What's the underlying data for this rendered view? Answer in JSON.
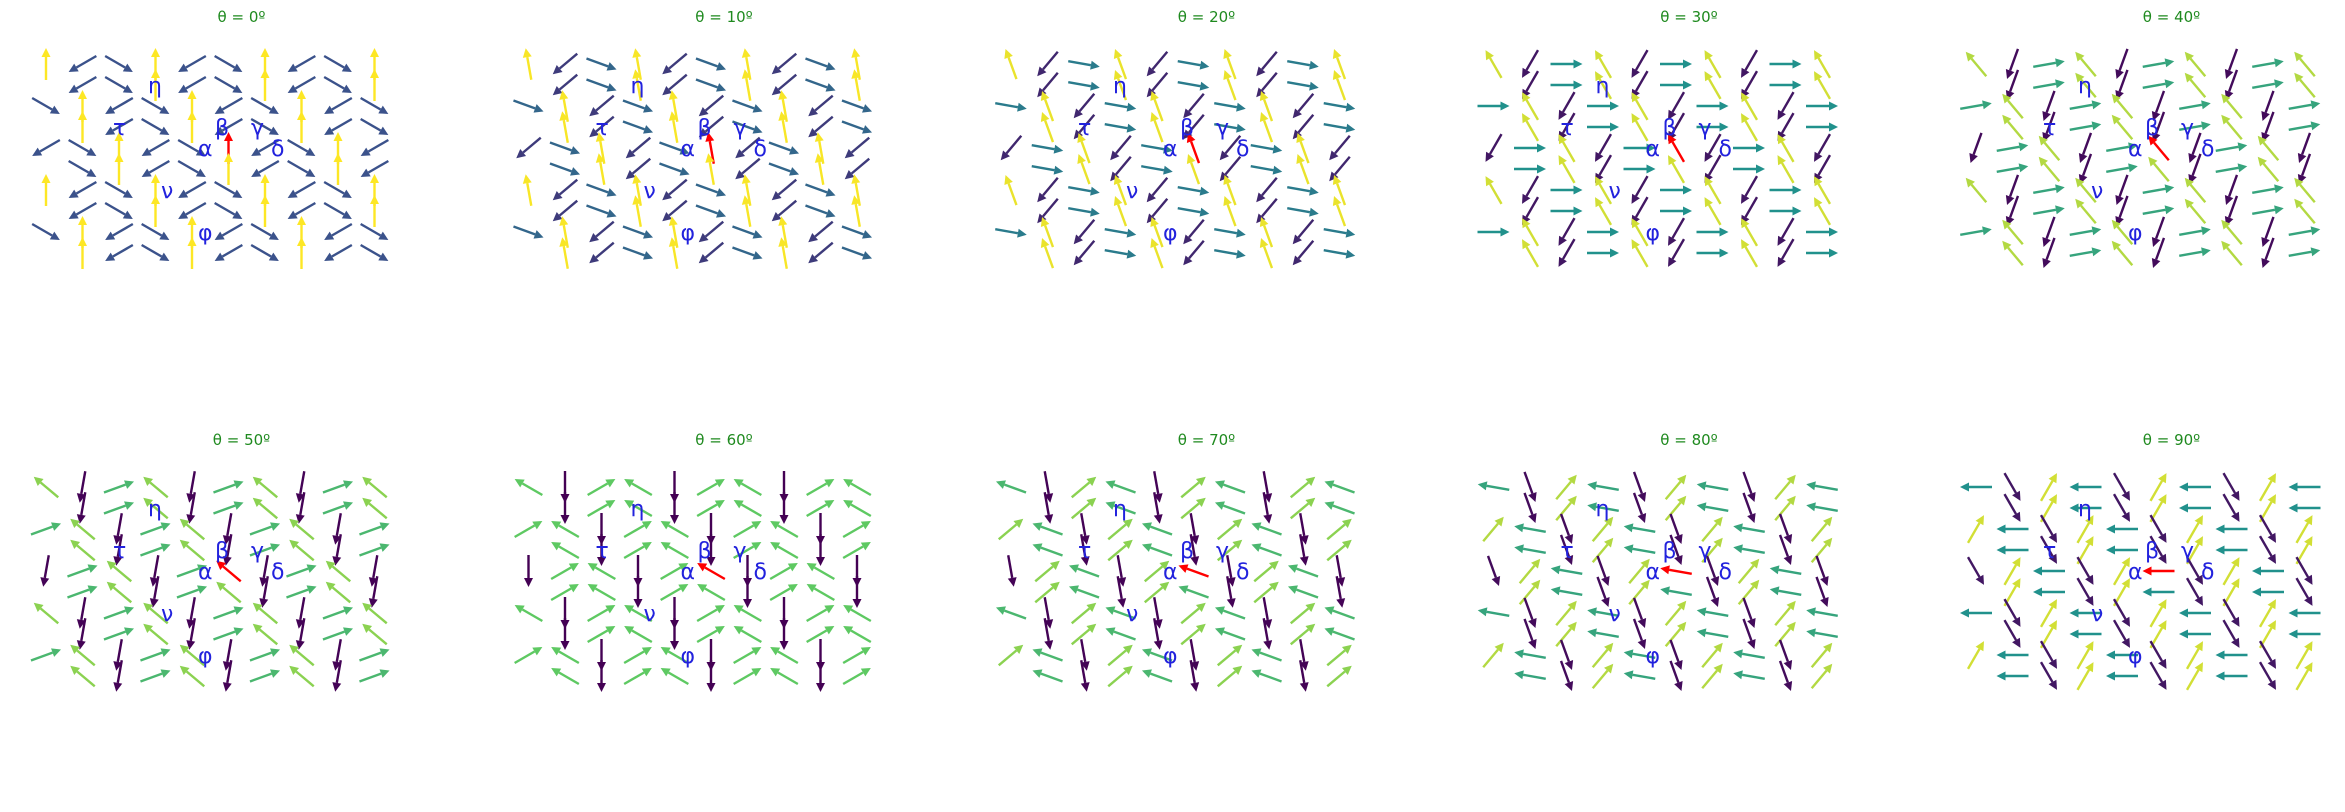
{
  "chart_data": {
    "type": "quiver",
    "title": "",
    "xlabel": "",
    "ylabel": "",
    "axes_visible": false,
    "grid": false,
    "panel_titles": [
      "θ = 0º",
      "θ = 10º",
      "θ = 20º",
      "θ = 30º",
      "θ = 40º",
      "θ = 50º",
      "θ = 60º",
      "θ = 70º",
      "θ = 80º",
      "θ = 90º"
    ],
    "theta_deg": [
      0,
      10,
      20,
      30,
      40,
      50,
      60,
      70,
      80,
      90
    ],
    "site_labels": [
      "η",
      "τ",
      "β",
      "γ",
      "α",
      "δ",
      "ν",
      "φ"
    ],
    "lattice": "triangular, three sublattices",
    "sublattice_base_angles_deg": [
      90,
      210,
      330
    ],
    "rotation_direction": "counterclockwise",
    "colormap": "viridis",
    "highlighted_site": "α",
    "highlight_color": "#ff0000",
    "colors": {
      "title": "#1f8a1f",
      "site_labels": "#2222dd"
    }
  }
}
